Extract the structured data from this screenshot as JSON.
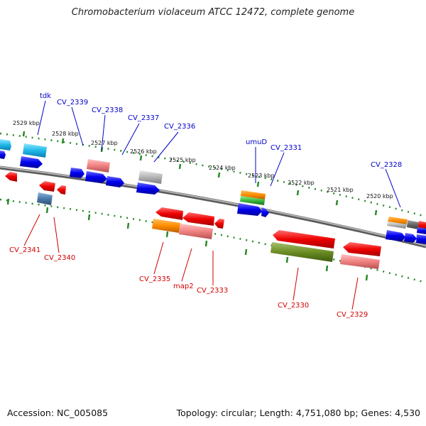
{
  "title": "Chromobacterium violaceum ATCC 12472, complete genome",
  "accession": "Accession: NC_005085",
  "topology": "Topology: circular; Length: 4,751,080 bp; Genes: 4,530",
  "kbp_ticks": [
    "2529 kbp",
    "2528 kbp",
    "2527 kbp",
    "2526 kbp",
    "2525 kbp",
    "2524 kbp",
    "2523 kbp",
    "2522 kbp",
    "2521 kbp",
    "2520 kbp"
  ],
  "top_labels": [
    "tdk",
    "CV_2339",
    "CV_2338",
    "CV_2337",
    "CV_2336",
    "umuD",
    "CV_2331",
    "CV_2328"
  ],
  "bottom_labels": [
    "CV_2341",
    "CV_2340",
    "CV_2335",
    "map2",
    "CV_2333",
    "CV_2330",
    "CV_2329"
  ],
  "colors": {
    "top_label": "#0000c8",
    "bottom_label": "#d00000",
    "tick": "#2a8a2a",
    "backbone": "#8c8c8c"
  }
}
